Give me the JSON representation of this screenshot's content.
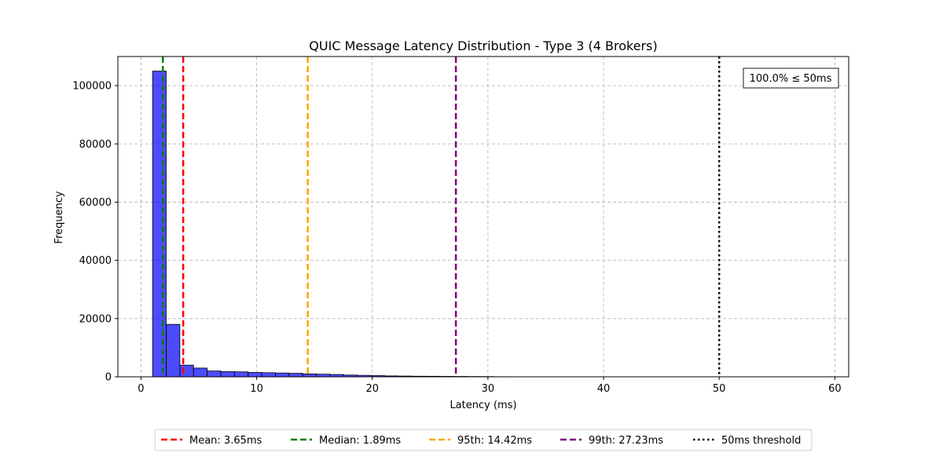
{
  "chart_data": {
    "type": "bar",
    "title": "QUIC Message Latency Distribution - Type 3 (4 Brokers)",
    "xlabel": "Latency (ms)",
    "ylabel": "Frequency",
    "xlim": [
      -2,
      61.2
    ],
    "ylim": [
      0,
      110000
    ],
    "x_ticks": [
      0,
      10,
      20,
      30,
      40,
      50,
      60
    ],
    "y_ticks": [
      0,
      20000,
      40000,
      60000,
      80000,
      100000
    ],
    "grid": true,
    "bar_color": "#0000ff",
    "bar_edge_color": "#000000",
    "histogram": {
      "bin_edges": [
        1.0,
        2.18,
        3.36,
        4.54,
        5.72,
        6.9,
        8.08,
        9.26,
        10.44,
        11.62,
        12.8,
        13.98,
        15.16,
        16.34,
        17.52,
        18.7,
        19.88,
        21.06,
        22.24,
        23.42,
        24.6,
        25.78,
        26.96,
        28.14,
        29.32,
        30.5,
        31.68,
        32.86,
        34.04,
        35.22,
        36.4,
        37.58,
        38.76,
        39.94,
        41.12,
        42.3,
        43.48,
        44.66,
        45.84,
        47.02,
        48.2,
        49.38,
        50.56,
        51.74,
        52.92,
        54.1,
        55.28,
        56.46,
        57.64,
        58.82
      ],
      "counts": [
        105000,
        18000,
        4000,
        3000,
        2000,
        1800,
        1700,
        1500,
        1400,
        1300,
        1200,
        1000,
        900,
        800,
        600,
        500,
        400,
        300,
        250,
        200,
        180,
        150,
        130,
        100,
        80,
        40,
        20,
        15,
        10,
        8,
        6,
        5,
        4,
        3,
        3,
        2,
        2,
        2,
        1,
        1,
        1,
        1,
        1,
        1,
        1,
        1,
        1,
        1,
        1
      ]
    },
    "reference_lines": [
      {
        "label": "Mean: 3.65ms",
        "x": 3.65,
        "color": "#ff0000",
        "style": "dashed"
      },
      {
        "label": "Median: 1.89ms",
        "x": 1.89,
        "color": "#008000",
        "style": "dashed"
      },
      {
        "label": "95th: 14.42ms",
        "x": 14.42,
        "color": "#ffa500",
        "style": "dashed"
      },
      {
        "label": "99th: 27.23ms",
        "x": 27.23,
        "color": "#800080",
        "style": "dashed"
      },
      {
        "label": "50ms threshold",
        "x": 50,
        "color": "#000000",
        "style": "dotted"
      }
    ],
    "annotation": "100.0% ≤ 50ms",
    "legend_position": "below"
  }
}
